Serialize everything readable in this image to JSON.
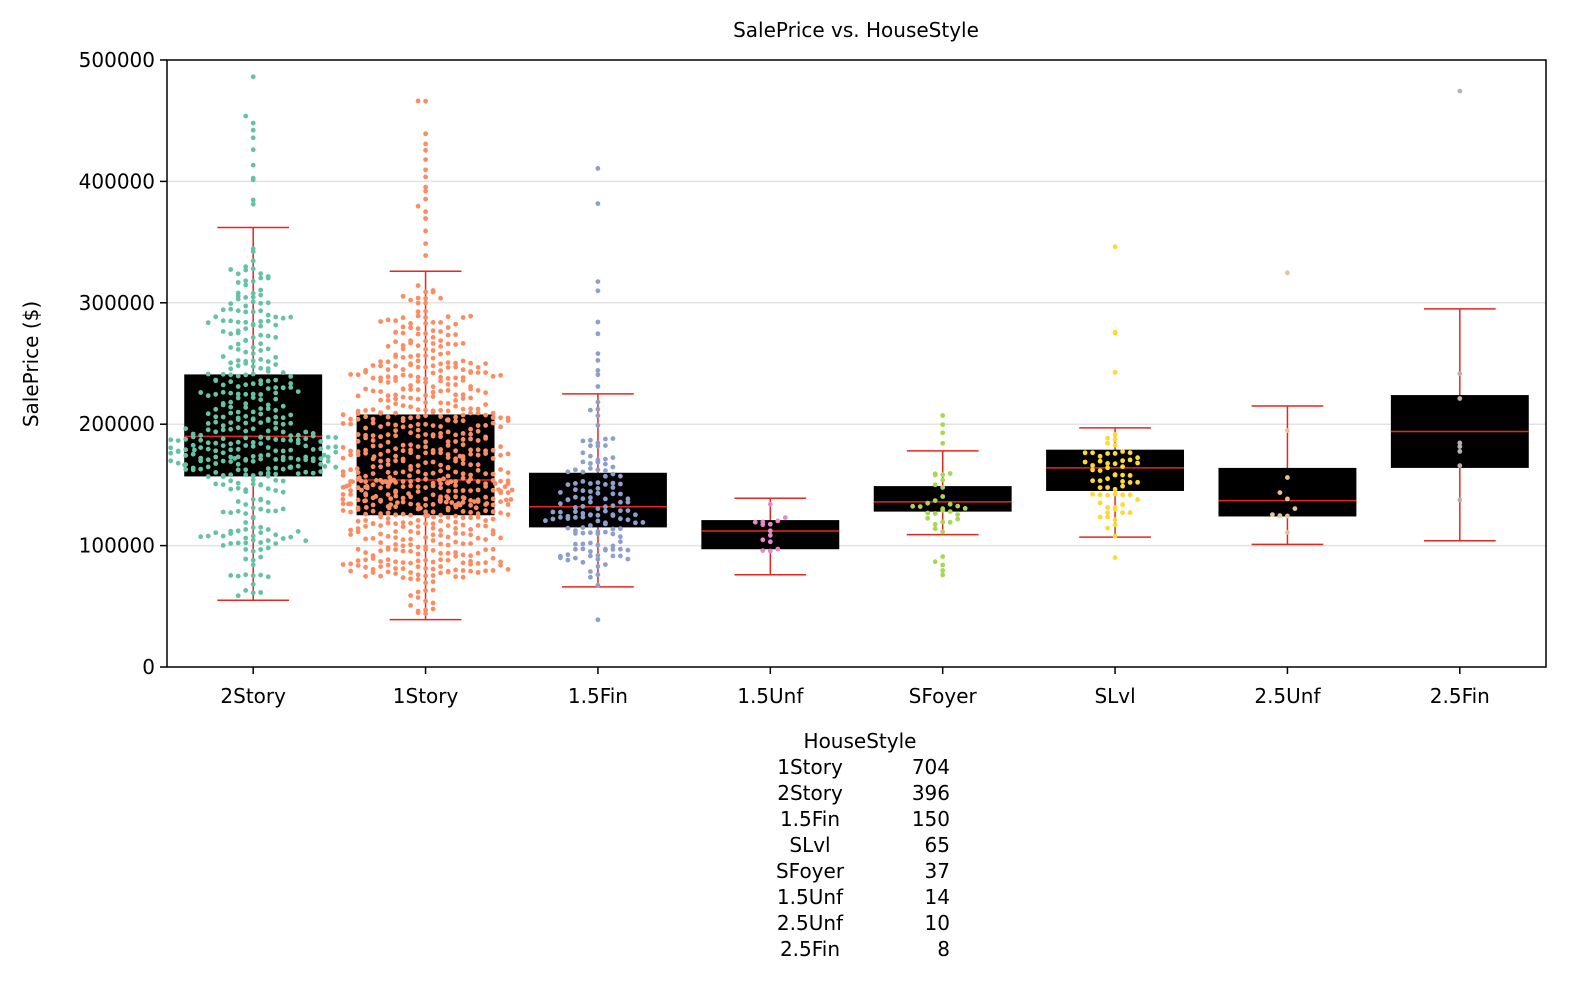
{
  "chart_data": {
    "type": "box",
    "title": "SalePrice vs. HouseStyle",
    "xlabel": "",
    "ylabel": "SalePrice ($)",
    "ylim": [
      0,
      500000
    ],
    "yticks": [
      0,
      100000,
      200000,
      300000,
      400000,
      500000
    ],
    "grid": "y",
    "categories": [
      "2Story",
      "1Story",
      "1.5Fin",
      "1.5Unf",
      "SFoyer",
      "SLvl",
      "2.5Unf",
      "2.5Fin"
    ],
    "boxes": [
      {
        "name": "2Story",
        "whisker_low": 55000,
        "q1": 157000,
        "median": 190000,
        "q3": 241000,
        "whisker_high": 362000,
        "color": "#66c2a5",
        "outliers": [
          380000,
          385000,
          400000,
          403000,
          413000,
          425000,
          437000,
          441000,
          448000,
          453000,
          485000
        ]
      },
      {
        "name": "1Story",
        "whisker_low": 39000,
        "q1": 125000,
        "median": 154000,
        "q3": 208000,
        "whisker_high": 326000,
        "color": "#fc8d62",
        "outliers": [
          340000,
          350000,
          360000,
          370000,
          375000,
          380000,
          385000,
          392000,
          395000,
          403000,
          410000,
          418000,
          425000,
          432000,
          440000,
          465000,
          467000
        ]
      },
      {
        "name": "1.5Fin",
        "whisker_low": 66000,
        "q1": 115000,
        "median": 132000,
        "q3": 160000,
        "whisker_high": 225000,
        "color": "#8da0cb",
        "outliers": [
          38000,
          230000,
          240000,
          245000,
          252000,
          257000,
          275000,
          285000,
          311000,
          317000,
          381000,
          410000
        ]
      },
      {
        "name": "1.5Unf",
        "whisker_low": 76000,
        "q1": 97000,
        "median": 112000,
        "q3": 121000,
        "whisker_high": 139000,
        "color": "#e78ac3",
        "outliers": []
      },
      {
        "name": "SFoyer",
        "whisker_low": 109000,
        "q1": 128000,
        "median": 136000,
        "q3": 149000,
        "whisker_high": 178000,
        "color": "#a6d854",
        "outliers": [
          76000,
          80000,
          85000,
          88000,
          92000,
          185000,
          192000,
          200000,
          207000
        ]
      },
      {
        "name": "SLvl",
        "whisker_low": 107000,
        "q1": 145000,
        "median": 164000,
        "q3": 179000,
        "whisker_high": 197000,
        "color": "#ffd92f",
        "outliers": [
          91000,
          242000,
          275000,
          276000,
          345000
        ]
      },
      {
        "name": "2.5Unf",
        "whisker_low": 101000,
        "q1": 124000,
        "median": 137000,
        "q3": 164000,
        "whisker_high": 215000,
        "color": "#e5c494",
        "outliers": [
          325000
        ]
      },
      {
        "name": "2.5Fin",
        "whisker_low": 104000,
        "q1": 164000,
        "median": 194000,
        "q3": 224000,
        "whisker_high": 295000,
        "color": "#b3b3b3",
        "outliers": [
          475000
        ]
      }
    ]
  },
  "counts_table": {
    "header": "HouseStyle",
    "rows": [
      {
        "label": "1Story",
        "value": "704"
      },
      {
        "label": "2Story",
        "value": "396"
      },
      {
        "label": "1.5Fin",
        "value": "150"
      },
      {
        "label": "SLvl",
        "value": "65"
      },
      {
        "label": "SFoyer",
        "value": "37"
      },
      {
        "label": "1.5Unf",
        "value": "14"
      },
      {
        "label": "2.5Unf",
        "value": "10"
      },
      {
        "label": "2.5Fin",
        "value": "8"
      }
    ]
  }
}
